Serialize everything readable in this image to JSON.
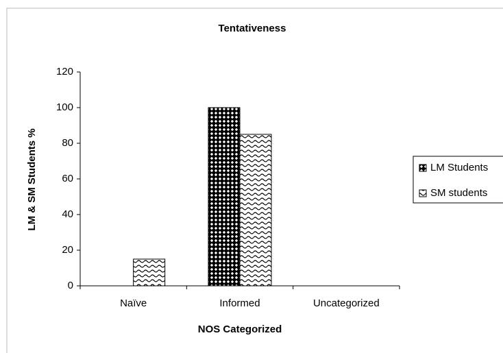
{
  "chart_data": {
    "type": "bar",
    "title": "Tentativeness",
    "x_label": "NOS Categorized",
    "y_label": "LM & SM Students %",
    "categories": [
      "Naïve",
      "Informed",
      "Uncategorized"
    ],
    "series": [
      {
        "name": "LM Students",
        "color": "#000000",
        "pattern": "crosshatch",
        "values": [
          0,
          100,
          0
        ]
      },
      {
        "name": "SM students",
        "color": "#000000",
        "pattern": "wave",
        "values": [
          15,
          85,
          0
        ]
      }
    ],
    "ylim": [
      0,
      120
    ],
    "yticks": [
      0,
      20,
      40,
      60,
      80,
      100,
      120
    ],
    "grid": false,
    "legend": "right"
  }
}
